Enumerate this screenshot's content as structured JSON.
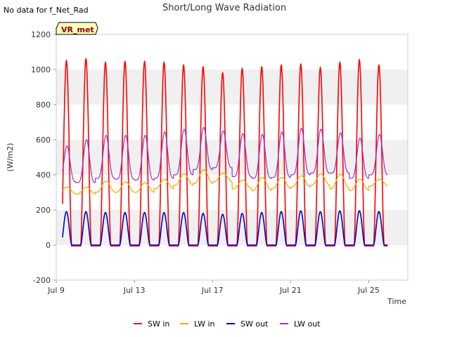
{
  "no_data_note": "No data for f_Net_Rad",
  "badge": "VR_met",
  "chart_data": {
    "type": "line",
    "title": "Short/Long Wave Radiation",
    "xlabel": "Time",
    "ylabel": "(W/m2)",
    "ylim": [
      -200,
      1200
    ],
    "xlim": [
      0,
      18
    ],
    "yticks": [
      -200,
      0,
      200,
      400,
      600,
      800,
      1000,
      1200
    ],
    "xticks": [
      {
        "label": "Jul 9",
        "day": 0
      },
      {
        "label": "Jul 13",
        "day": 4
      },
      {
        "label": "Jul 17",
        "day": 8
      },
      {
        "label": "Jul 21",
        "day": 12
      },
      {
        "label": "Jul 25",
        "day": 16
      }
    ],
    "grid": "horizontal bands",
    "legend_position": "bottom",
    "day_start": 0.32,
    "days_shown": 17,
    "series": [
      {
        "name": "SW in",
        "color": "#ff0000",
        "daily_peak": [
          1050,
          1060,
          1040,
          1045,
          1045,
          1040,
          1025,
          1015,
          980,
          1005,
          1015,
          1025,
          1030,
          1010,
          1040,
          1055,
          1025
        ],
        "night_value": -5
      },
      {
        "name": "LW in",
        "color": "#ffa500",
        "daily_peak": [
          330,
          330,
          365,
          360,
          355,
          375,
          405,
          430,
          410,
          370,
          385,
          385,
          395,
          405,
          405,
          375,
          375
        ],
        "daily_min": [
          290,
          290,
          300,
          300,
          300,
          320,
          340,
          350,
          360,
          320,
          310,
          320,
          330,
          340,
          320,
          310,
          335
        ]
      },
      {
        "name": "SW out",
        "color": "#0000cc",
        "daily_peak": [
          190,
          190,
          185,
          185,
          185,
          185,
          185,
          180,
          175,
          180,
          185,
          190,
          195,
          190,
          195,
          195,
          190
        ],
        "night_value": 0
      },
      {
        "name": "LW out",
        "color": "#9932cc",
        "daily_peak": [
          565,
          600,
          625,
          625,
          625,
          645,
          660,
          670,
          650,
          635,
          630,
          645,
          665,
          660,
          640,
          610,
          630
        ],
        "daily_min": [
          360,
          355,
          380,
          375,
          370,
          380,
          400,
          430,
          440,
          390,
          380,
          385,
          400,
          410,
          410,
          380,
          400
        ]
      }
    ]
  }
}
